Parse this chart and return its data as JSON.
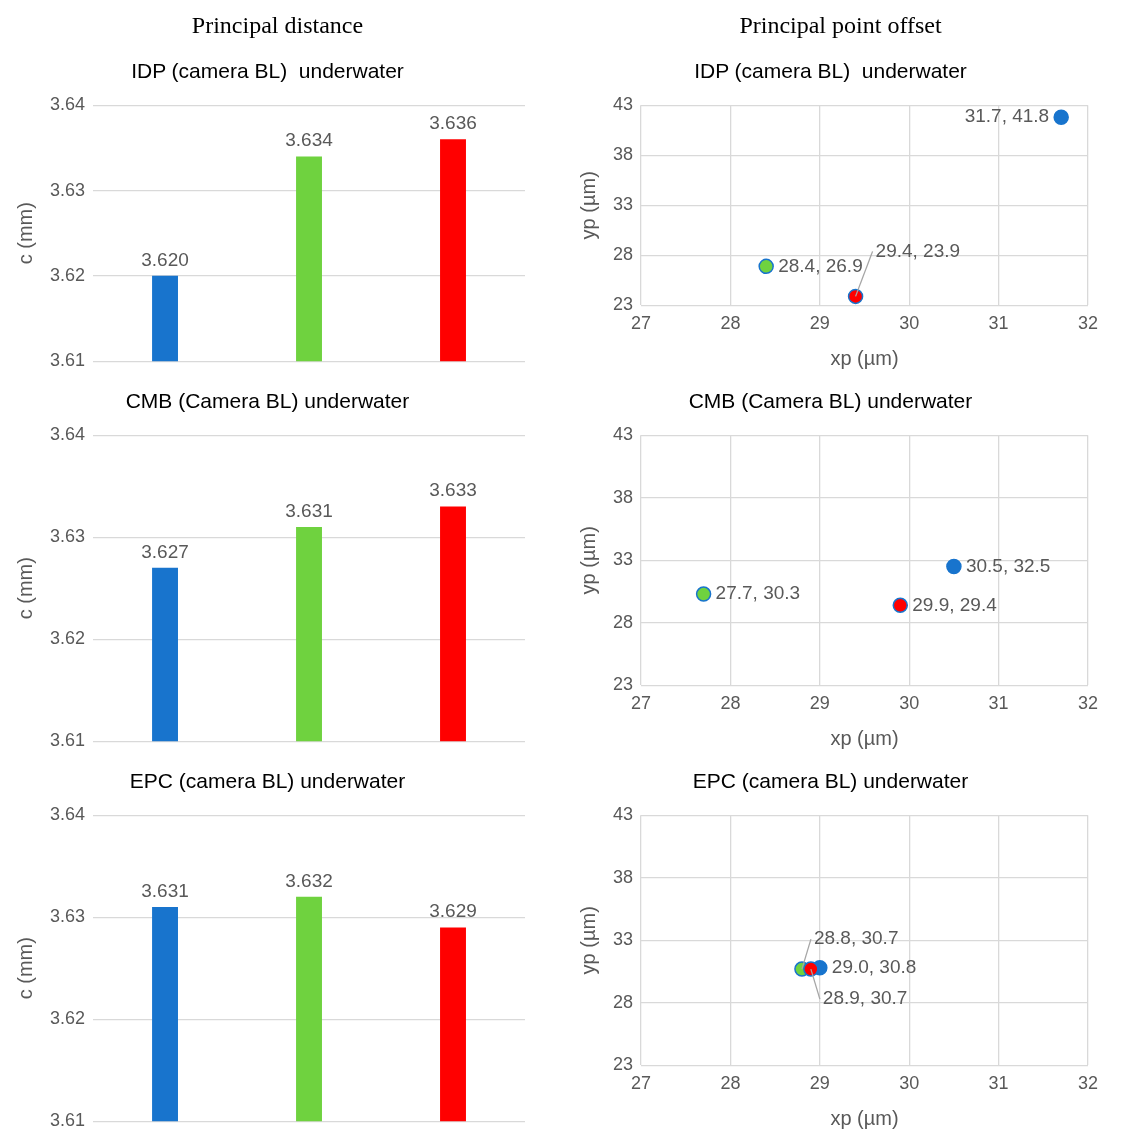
{
  "chart_data": [
    {
      "type": "bar",
      "title": "IDP (camera BL)  underwater",
      "annotations": [
        "Principal distance"
      ],
      "ylabel": "c (mm)",
      "categories": [
        null,
        null,
        null
      ],
      "values": [
        3.62,
        3.634,
        3.636
      ],
      "value_labels": [
        "3.620",
        "3.634",
        "3.636"
      ],
      "colors": [
        "#1874cd",
        "#6fd23f",
        "#ff0000"
      ],
      "ylim": [
        3.61,
        3.64
      ],
      "yticks": [
        3.61,
        3.62,
        3.63,
        3.64
      ],
      "grid": "y",
      "tick_labels": "y",
      "legend": false
    },
    {
      "type": "scatter",
      "title": "IDP (camera BL)  underwater",
      "annotations": [
        "Principal point offset"
      ],
      "xlabel": "xp (µm)",
      "ylabel": "yp (µm)",
      "series": [
        {
          "x": [
            31.7,
            28.4,
            29.4
          ],
          "values": [
            41.8,
            26.9,
            23.9
          ],
          "colors": [
            "#1874cd",
            "#6fd23f",
            "#ff0000"
          ],
          "value_labels": [
            "31.7, 41.8",
            "28.4, 26.9",
            "29.4, 23.9"
          ]
        }
      ],
      "xlim": [
        27,
        32
      ],
      "xticks": [
        27,
        28,
        29,
        30,
        31,
        32
      ],
      "ylim": [
        23,
        43
      ],
      "yticks": [
        23,
        28,
        33,
        38,
        43
      ],
      "grid": true,
      "marker": "circle",
      "legend": false
    },
    {
      "type": "bar",
      "title": "CMB (Camera BL) underwater",
      "ylabel": "c (mm)",
      "categories": [
        null,
        null,
        null
      ],
      "values": [
        3.627,
        3.631,
        3.633
      ],
      "value_labels": [
        "3.627",
        "3.631",
        "3.633"
      ],
      "colors": [
        "#1874cd",
        "#6fd23f",
        "#ff0000"
      ],
      "ylim": [
        3.61,
        3.64
      ],
      "yticks": [
        3.61,
        3.62,
        3.63,
        3.64
      ],
      "grid": "y",
      "tick_labels": "y",
      "legend": false
    },
    {
      "type": "scatter",
      "title": "CMB (Camera BL) underwater",
      "xlabel": "xp (µm)",
      "ylabel": "yp (µm)",
      "series": [
        {
          "x": [
            30.5,
            27.7,
            29.9
          ],
          "values": [
            32.5,
            30.3,
            29.4
          ],
          "colors": [
            "#1874cd",
            "#6fd23f",
            "#ff0000"
          ],
          "value_labels": [
            "30.5, 32.5",
            "27.7, 30.3",
            "29.9, 29.4"
          ]
        }
      ],
      "xlim": [
        27,
        32
      ],
      "xticks": [
        27,
        28,
        29,
        30,
        31,
        32
      ],
      "ylim": [
        23,
        43
      ],
      "yticks": [
        23,
        28,
        33,
        38,
        43
      ],
      "grid": true,
      "marker": "circle",
      "legend": false
    },
    {
      "type": "bar",
      "title": "EPC (camera BL) underwater",
      "ylabel": "c (mm)",
      "categories": [
        null,
        null,
        null
      ],
      "values": [
        3.631,
        3.632,
        3.629
      ],
      "value_labels": [
        "3.631",
        "3.632",
        "3.629"
      ],
      "colors": [
        "#1874cd",
        "#6fd23f",
        "#ff0000"
      ],
      "ylim": [
        3.61,
        3.64
      ],
      "yticks": [
        3.61,
        3.62,
        3.63,
        3.64
      ],
      "grid": "y",
      "tick_labels": "y",
      "legend": false
    },
    {
      "type": "scatter",
      "title": "EPC (camera BL) underwater",
      "xlabel": "xp (µm)",
      "ylabel": "yp (µm)",
      "series": [
        {
          "x": [
            29.0,
            28.8,
            28.9
          ],
          "values": [
            30.8,
            30.7,
            30.7
          ],
          "colors": [
            "#1874cd",
            "#6fd23f",
            "#ff0000"
          ],
          "value_labels": [
            "29.0, 30.8",
            "28.8, 30.7",
            "28.9, 30.7"
          ]
        }
      ],
      "xlim": [
        27,
        32
      ],
      "xticks": [
        27,
        28,
        29,
        30,
        31,
        32
      ],
      "ylim": [
        23,
        43
      ],
      "yticks": [
        23,
        28,
        33,
        38,
        43
      ],
      "grid": true,
      "marker": "circle",
      "legend": false
    }
  ]
}
